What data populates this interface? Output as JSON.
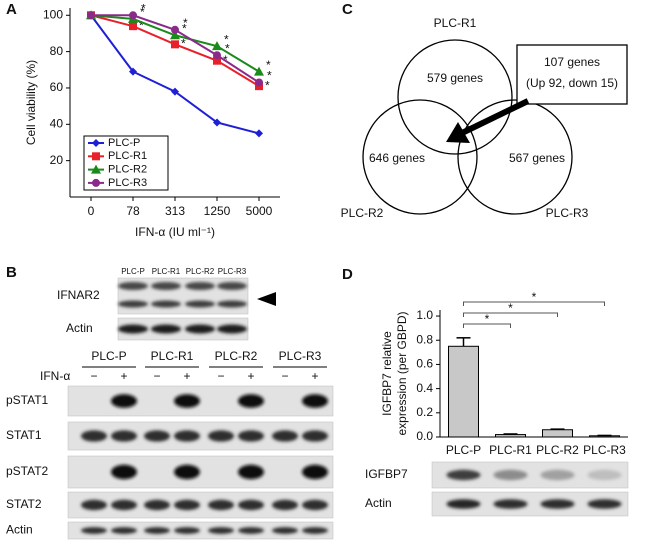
{
  "panel_labels": [
    "A",
    "B",
    "C",
    "D"
  ],
  "chart_data": [
    {
      "type": "line",
      "ylabel": "Cell viability (%)",
      "xlabel": "IFN-α (IU ml⁻¹)",
      "categories": [
        "0",
        "78",
        "313",
        "1250",
        "5000"
      ],
      "ylim": [
        0,
        104
      ],
      "yticks": [
        20,
        40,
        60,
        80,
        100
      ],
      "series": [
        {
          "name": "PLC-P",
          "color": "#1f1fd6",
          "marker": "diamond",
          "values": [
            100,
            69,
            58,
            41,
            35
          ]
        },
        {
          "name": "PLC-R1",
          "color": "#e8202a",
          "marker": "square",
          "values": [
            100,
            94,
            84,
            75,
            61
          ],
          "significance": [
            null,
            "*",
            "*",
            "*",
            "*"
          ]
        },
        {
          "name": "PLC-R2",
          "color": "#1a8a1a",
          "marker": "triangle",
          "values": [
            100,
            98,
            89,
            83,
            69
          ],
          "significance": [
            null,
            "*",
            "*",
            "*",
            "*"
          ]
        },
        {
          "name": "PLC-R3",
          "color": "#8a2a8a",
          "marker": "circle",
          "values": [
            100,
            100,
            92,
            78,
            63
          ],
          "significance": [
            null,
            "*",
            "*",
            "*",
            "*"
          ]
        }
      ]
    },
    {
      "type": "bar",
      "ylabel": [
        "IGFBP7 relative",
        "expression (per GBPD)"
      ],
      "categories": [
        "PLC-P",
        "PLC-R1",
        "PLC-R2",
        "PLC-R3"
      ],
      "values": [
        0.75,
        0.02,
        0.06,
        0.01
      ],
      "errors": [
        0.07,
        0.005,
        0.005,
        0.003
      ],
      "color": "#c8c8c8",
      "ylim": [
        0,
        1.05
      ],
      "yticks": [
        {
          "value": 0,
          "label": "0.0"
        },
        0.2,
        0.4,
        0.6,
        0.8,
        {
          "value": 1,
          "label": "1.0"
        }
      ],
      "comparisons": [
        {
          "from": 0,
          "to": 1,
          "label": "*"
        },
        {
          "from": 0,
          "to": 2,
          "label": "*"
        },
        {
          "from": 0,
          "to": 3,
          "label": "*"
        }
      ],
      "blot_rows": [
        "IGFBP7",
        "Actin"
      ]
    }
  ],
  "venn": {
    "sets": [
      {
        "name": "PLC-R1",
        "count": "579 genes"
      },
      {
        "name": "PLC-R2",
        "count": "646 genes"
      },
      {
        "name": "PLC-R3",
        "count": "567 genes"
      }
    ],
    "callout": [
      "107 genes",
      "(Up 92, down 15)"
    ]
  },
  "blots": {
    "upper": {
      "columns": [
        "PLC-P",
        "PLC-R1",
        "PLC-R2",
        "PLC-R3"
      ],
      "rows": [
        "IFNAR2",
        "Actin"
      ]
    },
    "lower": {
      "groups": [
        "PLC-P",
        "PLC-R1",
        "PLC-R2",
        "PLC-R3"
      ],
      "treatment_label": "IFN-α",
      "treatment": [
        "−",
        "+"
      ],
      "rows": [
        "pSTAT1",
        "STAT1",
        "pSTAT2",
        "STAT2",
        "Actin"
      ]
    }
  }
}
